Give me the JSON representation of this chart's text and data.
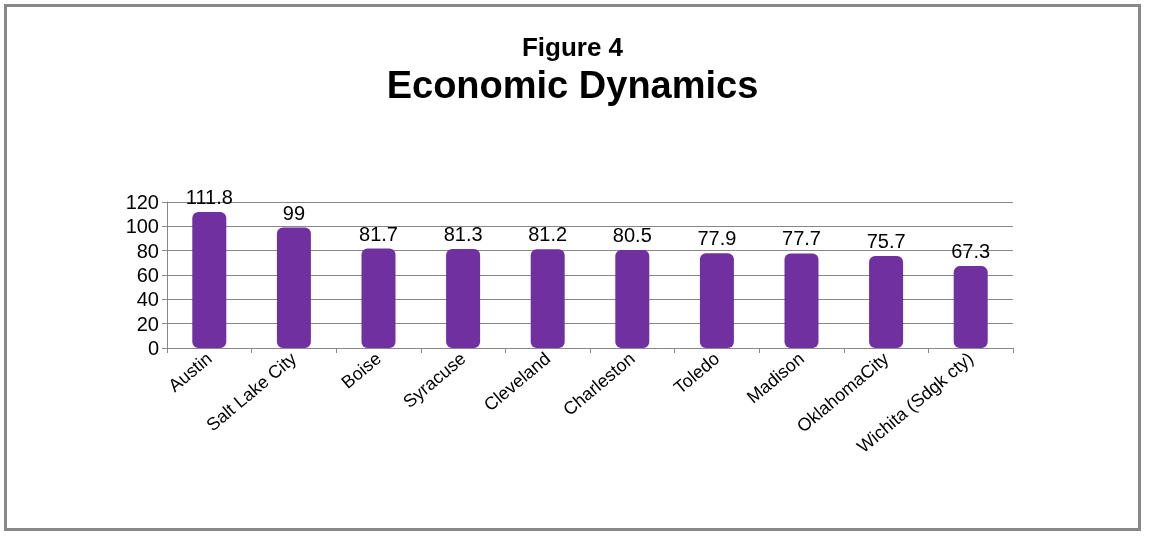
{
  "chart_data": {
    "type": "bar",
    "title": "Figure 4",
    "subtitle": "Economic Dynamics",
    "categories": [
      "Austin",
      "Salt Lake City",
      "Boise",
      "Syracuse",
      "Cleveland",
      "Charleston",
      "Toledo",
      "Madison",
      "OklahomaCity",
      "Wichita (Sdgk cty)"
    ],
    "values": [
      111.8,
      99,
      81.7,
      81.3,
      81.2,
      80.5,
      77.9,
      77.7,
      75.7,
      67.3
    ],
    "color": "#7030a0",
    "ylim": [
      0,
      120
    ],
    "yticks": [
      0,
      20,
      40,
      60,
      80,
      100,
      120
    ],
    "grid": "y",
    "data_labels": true
  }
}
